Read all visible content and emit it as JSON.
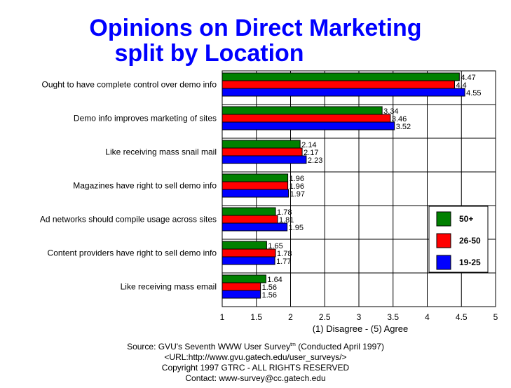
{
  "chart_data": {
    "type": "bar",
    "orientation": "horizontal",
    "title": "Opinions on Direct Marketing",
    "subtitle": "split by Location",
    "xlabel": "(1) Disagree - (5) Agree",
    "xlim": [
      1,
      5
    ],
    "xticks": [
      "1",
      "1.5",
      "2",
      "2.5",
      "3",
      "3.5",
      "4",
      "4.5",
      "5"
    ],
    "grid": true,
    "legend_position": "right",
    "categories": [
      "Ought to have complete control over demo info",
      "Demo info improves marketing of sites",
      "Like receiving mass snail mail",
      "Magazines have right to sell demo info",
      "Ad networks should compile usage across sites",
      "Content providers have right to sell demo info",
      "Like receiving mass email"
    ],
    "series": [
      {
        "name": "50+",
        "color": "#008000",
        "values": [
          4.47,
          3.34,
          2.14,
          1.96,
          1.78,
          1.65,
          1.64
        ],
        "labels": [
          "4.47",
          "3.34",
          "2.14",
          "1.96",
          "1.78",
          "1.65",
          "1.64"
        ]
      },
      {
        "name": "26-50",
        "color": "#ff0000",
        "values": [
          4.4,
          3.46,
          2.17,
          1.96,
          1.81,
          1.78,
          1.56
        ],
        "labels": [
          "4.4",
          "3.46",
          "2.17",
          "1.96",
          "1.81",
          "1.78",
          "1.56"
        ]
      },
      {
        "name": "19-25",
        "color": "#0000ff",
        "values": [
          4.55,
          3.52,
          2.23,
          1.97,
          1.95,
          1.77,
          1.56
        ],
        "labels": [
          "4.55",
          "3.52",
          "2.23",
          "1.97",
          "1.95",
          "1.77",
          "1.56"
        ]
      }
    ]
  },
  "footer": {
    "source_prefix": "Source: GVU's Seventh WWW User Survey",
    "source_sup": "tm",
    "source_suffix": " (Conducted April 1997)",
    "url": "<URL:http://www.gvu.gatech.edu/user_surveys/>",
    "copyright": "Copyright 1997 GTRC - ALL RIGHTS RESERVED",
    "contact": "Contact: www-survey@cc.gatech.edu"
  }
}
